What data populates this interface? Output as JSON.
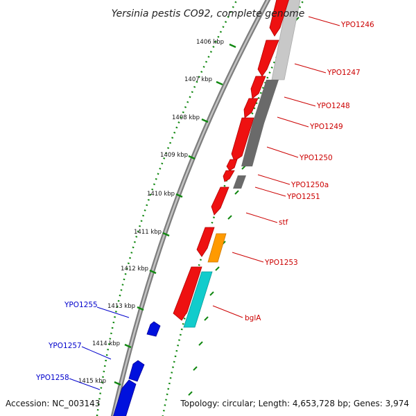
{
  "title": "Yersinia pestis CO92, complete genome",
  "footer": {
    "accession": "Accession: NC_003143",
    "summary": "Topology: circular; Length: 4,653,728 bp; Genes: 3,974"
  },
  "ticks": [
    "1406 kbp",
    "1407 kbp",
    "1408 kbp",
    "1409 kbp",
    "1410 kbp",
    "1411 kbp",
    "1412 kbp",
    "1413 kbp",
    "1414 kbp",
    "1415 kbp"
  ],
  "genes_forward": [
    "YPO1246",
    "YPO1247",
    "YPO1248",
    "YPO1249",
    "YPO1250",
    "YPO1250a",
    "YPO1251",
    "stf",
    "YPO1253",
    "bglA"
  ],
  "genes_reverse": [
    "YPO1255",
    "YPO1257",
    "YPO1258"
  ],
  "colors": {
    "forward_label": "#cc0000",
    "reverse_label": "#0000cc",
    "forward_cds": "#ee1111",
    "reverse_cds": "#0011dd",
    "cog_dark_gray": "#6a6a6a",
    "cog_light_gray": "#c8c8c8",
    "cog_orange": "#ff9a00",
    "cog_cyan": "#11cccc",
    "tick_green": "#118811",
    "backbone": "#8a8a8a"
  }
}
